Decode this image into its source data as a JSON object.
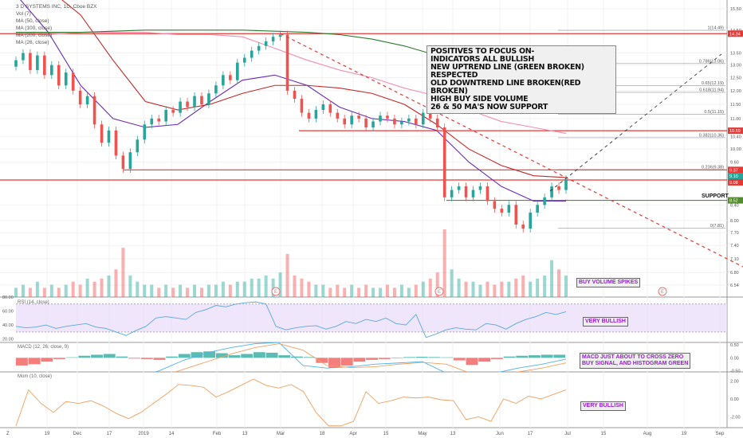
{
  "legend": {
    "symbol": "3 D SYSTEMS INC, 1D, Cboe BZX",
    "items": [
      "Vol (7)",
      "MA (50, close)",
      "MA (100, close)",
      "MA (200, close)",
      "MA (26, close)"
    ]
  },
  "annotation": {
    "lines": [
      "POSITIVES TO FOCUS ON-",
      "INDICATORS ALL BULLISH",
      "NEW UPTREND LINE (GREEN BROKEN) RESPECTED",
      "OLD DOWNTREND LINE BROKEN(RED BROKEN)",
      "HIGH BUY SIDE VOLUME",
      "26 & 50 MA'S NOW SUPPORT"
    ]
  },
  "labels": {
    "support": "SUPPORT",
    "volume_note": "BUY VOLUME SPIKES",
    "rsi_note": "VERY BULLISH",
    "macd_note_1": "MACD JUST ABOUT TO CROSS ZERO",
    "macd_note_2": "BUY SIGNAL, AND HISTOGRAM GREEN",
    "mom_note": "VERY BULLISH",
    "earnings_marker": "E"
  },
  "colors": {
    "up": "#26a69a",
    "down": "#ef5350",
    "ma26": "#6a2bb5",
    "ma50": "#c62828",
    "ma100": "#f48fb1",
    "ma200": "#2e7d32",
    "rsi": "#5aa9d6",
    "macd": "#4fb3e8",
    "signal": "#f0a060",
    "mom": "#f0a060",
    "note_text": "#9b1bd6"
  },
  "chart_data": [
    {
      "type": "candlestick",
      "title": "3 D SYSTEMS INC, 1D, Cboe BZX",
      "scale": "log",
      "ylim": [
        6.4,
        16.0
      ],
      "y_ticks": [
        "15.50",
        "14.50",
        "13.50",
        "13.00",
        "12.50",
        "12.00",
        "11.50",
        "11.00",
        "10.40",
        "10.00",
        "9.60",
        "8.40",
        "8.00",
        "7.70",
        "7.40",
        "7.10",
        "6.80",
        "6.54"
      ],
      "x_ticks": [
        "19",
        "Dec",
        "17",
        "2019",
        "14",
        "Feb",
        "13",
        "Mar",
        "18",
        "Apr",
        "15",
        "May",
        "13",
        "Jun",
        "17",
        "Jul",
        "15",
        "Aug",
        "19",
        "Sep"
      ],
      "closes": [
        13.2,
        13.5,
        12.8,
        13.4,
        12.6,
        13.0,
        12.2,
        12.7,
        12.0,
        11.5,
        11.8,
        10.8,
        10.2,
        10.6,
        9.8,
        9.4,
        9.9,
        10.3,
        10.8,
        11.0,
        10.9,
        11.3,
        11.2,
        11.6,
        11.4,
        11.8,
        11.5,
        11.9,
        12.2,
        12.6,
        12.4,
        13.1,
        13.3,
        13.6,
        13.8,
        14.0,
        14.2,
        14.3,
        12.0,
        11.7,
        11.2,
        11.0,
        11.3,
        11.5,
        11.2,
        11.0,
        10.8,
        11.1,
        11.0,
        10.7,
        10.9,
        11.1,
        11.0,
        10.8,
        10.9,
        11.0,
        10.8,
        11.2,
        11.0,
        10.7,
        8.6,
        8.8,
        8.9,
        8.6,
        8.8,
        8.9,
        8.5,
        8.3,
        8.2,
        8.4,
        7.9,
        7.8,
        8.2,
        8.4,
        8.6,
        8.9,
        8.8,
        9.1
      ],
      "volume": [
        3,
        4,
        3,
        5,
        3,
        4,
        3,
        4,
        5,
        4,
        6,
        5,
        6,
        7,
        9,
        16,
        7,
        5,
        4,
        4,
        3,
        4,
        3,
        4,
        3,
        4,
        3,
        4,
        4,
        5,
        4,
        5,
        5,
        6,
        6,
        7,
        6,
        8,
        14,
        7,
        6,
        5,
        4,
        4,
        3,
        4,
        3,
        4,
        3,
        4,
        3,
        3,
        4,
        3,
        4,
        3,
        4,
        5,
        6,
        8,
        22,
        9,
        6,
        5,
        5,
        4,
        5,
        4,
        5,
        5,
        6,
        7,
        5,
        6,
        7,
        12,
        9,
        7
      ],
      "moving_averages": {
        "MA (26, close)": [
          16.2,
          14.4,
          12.2,
          11.0,
          10.7,
          10.8,
          11.6,
          12.4,
          12.6,
          12.2,
          11.4,
          11.0,
          10.9,
          10.6,
          9.6,
          8.9,
          8.5,
          8.5
        ],
        "MA (50, close)": [
          17.5,
          16.5,
          15.2,
          13.2,
          11.6,
          11.3,
          11.5,
          11.9,
          12.2,
          12.2,
          12.1,
          11.9,
          11.5,
          10.8,
          10.0,
          9.5,
          9.2,
          9.15
        ],
        "MA (100, close)": [
          14.3,
          14.3,
          14.4,
          14.4,
          14.4,
          14.3,
          14.3,
          14.2,
          13.7,
          13.2,
          12.8,
          12.5,
          12.1,
          11.8,
          11.3,
          10.9,
          10.7,
          10.5
        ],
        "MA (200, close)": [
          14.4,
          14.4,
          14.4,
          14.45,
          14.5,
          14.5,
          14.5,
          14.5,
          14.45,
          14.4,
          14.3,
          14.1,
          13.8,
          13.4,
          13.0,
          12.7,
          12.4,
          12.25
        ]
      },
      "horizontal_levels": [
        {
          "price": 14.34,
          "label": "14.34",
          "color": "#e53935"
        },
        {
          "price": 10.59,
          "label": "10.59",
          "color": "#e53935"
        },
        {
          "price": 9.37,
          "label": "9.37",
          "color": "#e53935"
        },
        {
          "price": 9.1,
          "label": "9.10",
          "color": "#26a69a"
        },
        {
          "price": 9.08,
          "label": "9.08",
          "color": "#e53935"
        },
        {
          "price": 8.52,
          "label": "8.52",
          "color": "#558b2f"
        }
      ],
      "fibonacci": [
        {
          "label": "1(14.49)",
          "price": 14.49
        },
        {
          "label": "0.786(13.06)",
          "price": 13.06
        },
        {
          "label": "0.65(12.19)",
          "price": 12.19
        },
        {
          "label": "0.618(11.94)",
          "price": 11.94
        },
        {
          "label": "0.5(11.15)",
          "price": 11.15
        },
        {
          "label": "0.382(10.36)",
          "price": 10.36
        },
        {
          "label": "0.236(9.38)",
          "price": 9.38
        },
        {
          "label": "0(7.81)",
          "price": 7.81
        }
      ]
    },
    {
      "type": "line",
      "title": "RSI (14, close)",
      "ylim": [
        15,
        80
      ],
      "y_ticks": [
        "80.00",
        "60.00",
        "40.00",
        "20.00"
      ],
      "band": [
        30,
        70
      ],
      "values": [
        38,
        36,
        37,
        40,
        35,
        38,
        40,
        42,
        37,
        35,
        30,
        25,
        32,
        38,
        50,
        52,
        50,
        48,
        58,
        62,
        68,
        66,
        70,
        72,
        73,
        70,
        38,
        33,
        36,
        38,
        39,
        34,
        38,
        45,
        42,
        48,
        45,
        50,
        42,
        40,
        55,
        22,
        27,
        33,
        36,
        34,
        33,
        42,
        40,
        34,
        42,
        48,
        52,
        58,
        55,
        59
      ]
    },
    {
      "type": "bar+line",
      "title": "MACD (12, 26, close, 9)",
      "ylim": [
        -0.55,
        0.6
      ],
      "y_ticks": [
        "0.50",
        "0.00",
        "-0.50"
      ],
      "histogram": [
        -0.3,
        -0.25,
        -0.15,
        -0.05,
        0.02,
        0.08,
        0.12,
        0.15,
        0.05,
        -0.03,
        -0.05,
        -0.08,
        0.05,
        0.15,
        0.22,
        0.25,
        0.18,
        0.1,
        0.15,
        0.22,
        0.2,
        0.1,
        0.05,
        0.03,
        -0.2,
        -0.38,
        -0.3,
        -0.15,
        -0.08,
        -0.05,
        -0.02,
        0.03,
        0.04,
        0.03,
        0.02,
        -0.1,
        -0.28,
        -0.15,
        -0.05,
        0.05,
        0.08,
        0.1,
        0.12,
        0.12
      ],
      "macd": [
        -1.2,
        -1.1,
        -1.0,
        -0.9,
        -0.9,
        -0.8,
        -0.5,
        -0.1,
        0.2,
        0.4,
        0.55,
        0.6,
        -0.3,
        -0.4,
        -0.35,
        -0.25,
        -0.2,
        -0.15,
        -0.6,
        -0.7,
        -0.6,
        -0.4,
        -0.25,
        -0.05
      ],
      "signal": [
        -1.3,
        -1.25,
        -1.15,
        -1.05,
        -0.95,
        -0.9,
        -0.75,
        -0.45,
        -0.15,
        0.15,
        0.4,
        0.55,
        0.3,
        -0.3,
        -0.38,
        -0.35,
        -0.25,
        -0.18,
        -0.25,
        -0.6,
        -0.7,
        -0.55,
        -0.4,
        -0.2
      ]
    },
    {
      "type": "line",
      "title": "Mom (10, close)",
      "ylim": [
        -3.2,
        3.0
      ],
      "y_ticks": [
        "2.00",
        "0.00",
        "-2.00"
      ],
      "values": [
        -3,
        1,
        -0.5,
        -1.5,
        -0.3,
        -0.5,
        -0.2,
        -0.8,
        -1.6,
        -2.2,
        -1.5,
        -0.5,
        0.5,
        1.6,
        1.5,
        1.3,
        0.2,
        0.8,
        1.5,
        2.2,
        1.5,
        1.2,
        1.6,
        0.8,
        -1.5,
        -3,
        -3,
        -2.5,
        0.8,
        -0.5,
        -0.2,
        0.2,
        0.1,
        0.2,
        -0.1,
        -0.2,
        -2.3,
        -2.0,
        -2.5,
        0.0,
        -0.5,
        0.3,
        0.0,
        0.5,
        1.0
      ]
    }
  ]
}
